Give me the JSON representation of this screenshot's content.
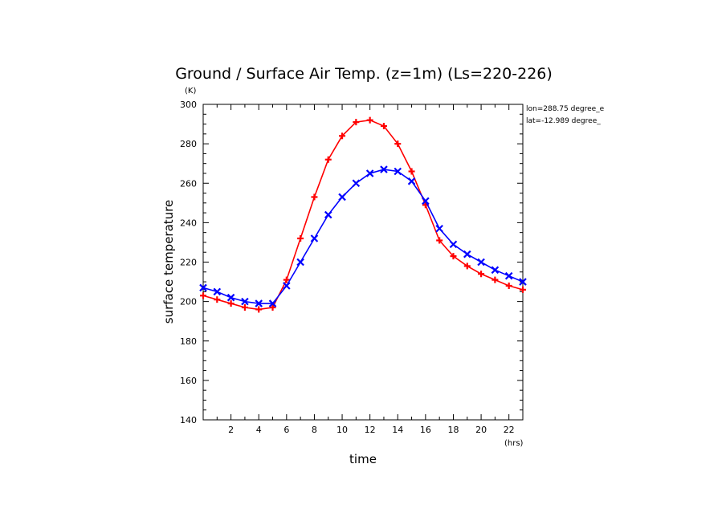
{
  "chart_data": {
    "type": "line",
    "title": "Ground / Surface Air Temp. (z=1m) (Ls=220-226)",
    "xlabel": "time",
    "ylabel": "surface temperature",
    "x_unit": "(hrs)",
    "y_unit": "(K)",
    "xlim": [
      0,
      23
    ],
    "ylim": [
      140,
      300
    ],
    "x_major_ticks": [
      2,
      4,
      6,
      8,
      10,
      12,
      14,
      16,
      18,
      20,
      22
    ],
    "y_major_ticks": [
      140,
      160,
      180,
      200,
      220,
      240,
      260,
      280,
      300
    ],
    "grid": false,
    "annotations": [
      "lon=288.75 degree_e",
      "lat=-12.989 degree_"
    ],
    "x": [
      0,
      1,
      2,
      3,
      4,
      5,
      6,
      7,
      8,
      9,
      10,
      11,
      12,
      13,
      14,
      15,
      16,
      17,
      18,
      19,
      20,
      21,
      22,
      23
    ],
    "series": [
      {
        "color": "#ff0000",
        "marker": "plus",
        "values": [
          203,
          201,
          199,
          197,
          196,
          197,
          211,
          232,
          253,
          272,
          284,
          291,
          292,
          289,
          280,
          266,
          249,
          231,
          223,
          218,
          214,
          211,
          208,
          206
        ]
      },
      {
        "color": "#0000ff",
        "marker": "x",
        "values": [
          207,
          205,
          202,
          200,
          199,
          199,
          208,
          220,
          232,
          244,
          253,
          260,
          265,
          267,
          266,
          261,
          251,
          237,
          229,
          224,
          220,
          216,
          213,
          210
        ]
      }
    ]
  }
}
